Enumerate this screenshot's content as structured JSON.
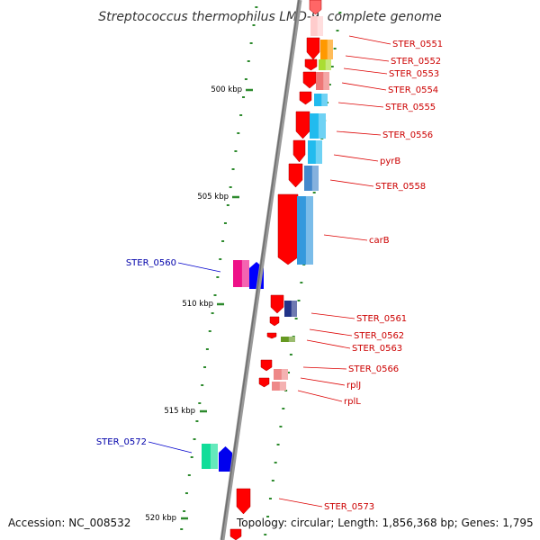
{
  "title": "Streptococcus thermophilus LMD-9, complete genome",
  "footer": {
    "accession": "Accession: NC_008532",
    "topology": "Topology: circular; Length: 1,856,368 bp; Genes: 1,795"
  },
  "kbp_labels": [
    "500 kbp",
    "505 kbp",
    "510 kbp",
    "515 kbp",
    "520 kbp"
  ],
  "colors": {
    "forward_strand": "#ff0000",
    "reverse_strand": "#0000ff",
    "forward_label": "#cc0000",
    "reverse_label": "#0000aa",
    "backbone": "#888888",
    "tick": "#228822"
  },
  "gene_labels": {
    "forward": [
      "STER_0551",
      "STER_0552",
      "STER_0553",
      "STER_0554",
      "STER_0555",
      "STER_0556",
      "pyrB",
      "STER_0558",
      "carB",
      "STER_0561",
      "STER_0562",
      "STER_0563",
      "STER_0566",
      "rplJ",
      "rplL",
      "STER_0573"
    ],
    "reverse": [
      "STER_0560",
      "STER_0572"
    ]
  }
}
